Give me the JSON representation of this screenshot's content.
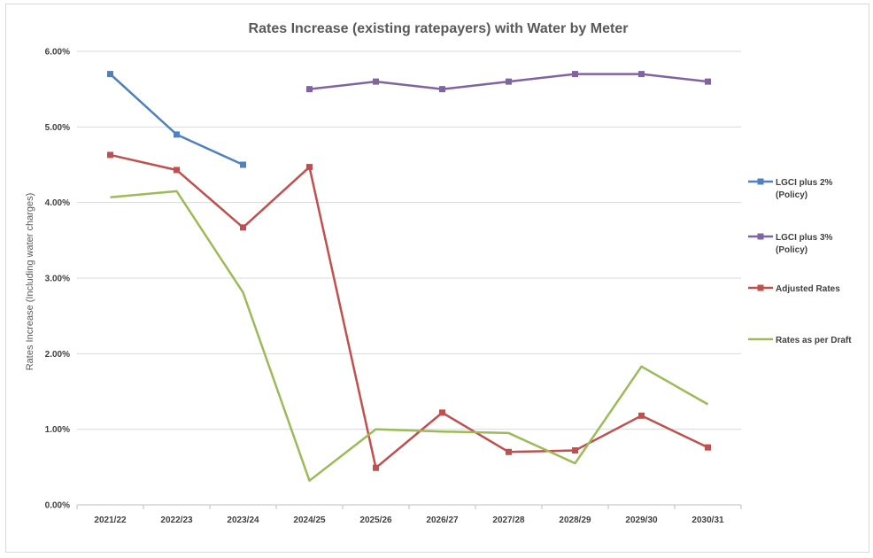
{
  "chart_data": {
    "type": "line",
    "title": "Rates Increase (existing ratepayers) with Water by Meter",
    "xlabel": "",
    "ylabel": "Rates Increase (Including water charges)",
    "categories": [
      "2021/22",
      "2022/23",
      "2023/24",
      "2024/25",
      "2025/26",
      "2026/27",
      "2027/28",
      "2028/29",
      "2029/30",
      "2030/31"
    ],
    "ylim": [
      0,
      6
    ],
    "yticks": [
      "0.00%",
      "1.00%",
      "2.00%",
      "3.00%",
      "4.00%",
      "5.00%",
      "6.00%"
    ],
    "grid": true,
    "legend_position": "right",
    "series": [
      {
        "name": [
          "LGCI plus 2%",
          "(Policy)"
        ],
        "color": "#4f81bd",
        "marker": "square",
        "values": [
          5.7,
          4.9,
          4.5,
          null,
          null,
          null,
          null,
          null,
          null,
          null
        ]
      },
      {
        "name": [
          "LGCI plus 3%",
          "(Policy)"
        ],
        "color": "#8064a2",
        "marker": "square",
        "values": [
          null,
          null,
          null,
          5.5,
          5.6,
          5.5,
          5.6,
          5.7,
          5.7,
          5.6
        ]
      },
      {
        "name": [
          "Adjusted Rates"
        ],
        "color": "#c0504d",
        "marker": "square",
        "values": [
          4.63,
          4.43,
          3.67,
          4.47,
          0.49,
          1.22,
          0.7,
          0.72,
          1.18,
          0.76
        ]
      },
      {
        "name": [
          "Rates as per Draft"
        ],
        "color": "#9bbb59",
        "marker": "none",
        "values": [
          4.07,
          4.15,
          2.81,
          0.32,
          1.0,
          0.97,
          0.95,
          0.55,
          1.83,
          1.33
        ]
      }
    ]
  }
}
